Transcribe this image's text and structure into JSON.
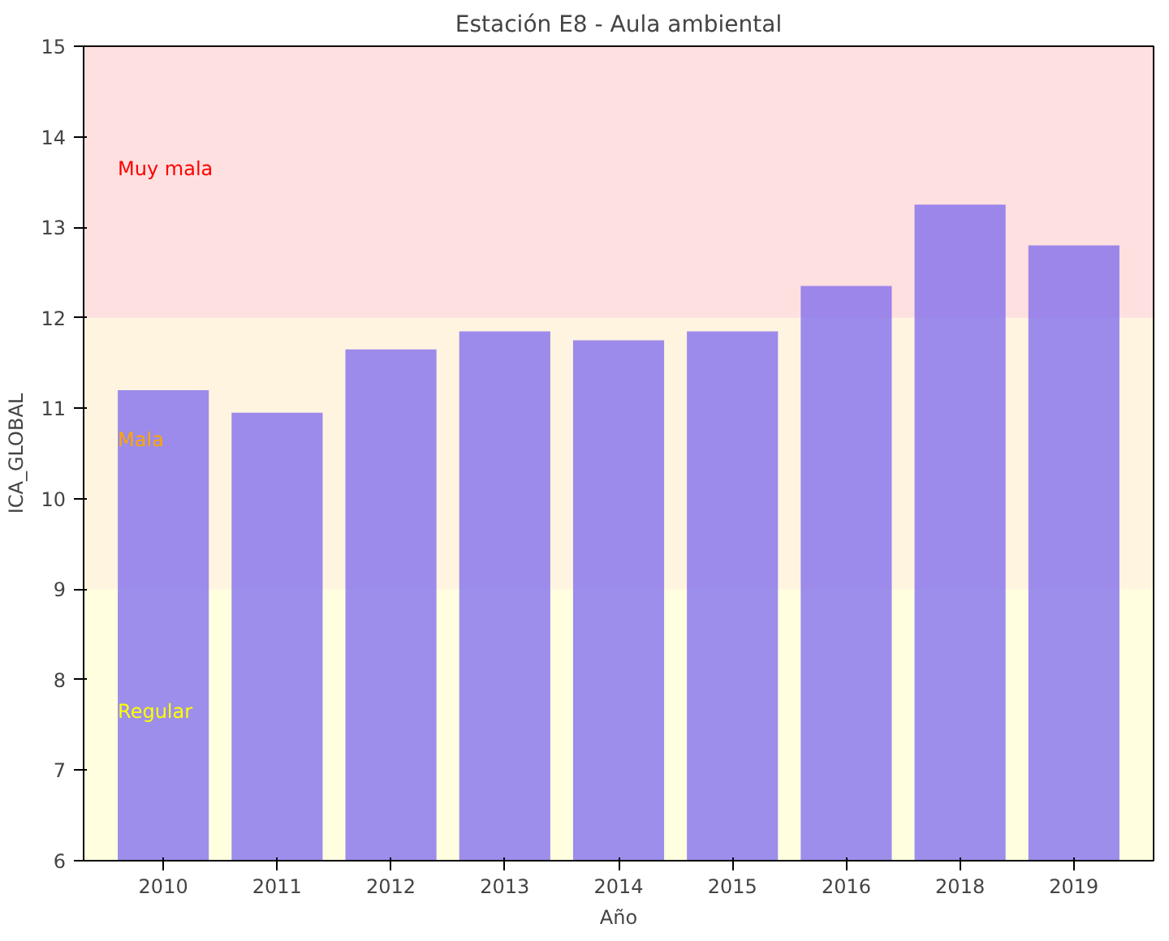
{
  "chart_data": {
    "type": "bar",
    "title": "Estación E8 - Aula ambiental",
    "xlabel": "Año",
    "ylabel": "ICA_GLOBAL",
    "categories": [
      "2010",
      "2011",
      "2012",
      "2013",
      "2014",
      "2015",
      "2016",
      "2018",
      "2019"
    ],
    "values": [
      11.2,
      10.95,
      11.65,
      11.85,
      11.75,
      11.85,
      12.35,
      13.25,
      12.8
    ],
    "color": "#7b68ee",
    "ylim": [
      6,
      15
    ],
    "yticks": [
      6,
      7,
      8,
      9,
      10,
      11,
      12,
      13,
      14,
      15
    ],
    "grid": false,
    "bands": [
      {
        "axis": "y",
        "from": 12,
        "to": 15,
        "label": "Muy mala",
        "color": "#ff0000"
      },
      {
        "axis": "y",
        "from": 9,
        "to": 12,
        "label": "Mala",
        "color": "#ffa500"
      },
      {
        "axis": "y",
        "from": 6,
        "to": 9,
        "label": "Regular",
        "color": "#ffff00"
      }
    ]
  }
}
